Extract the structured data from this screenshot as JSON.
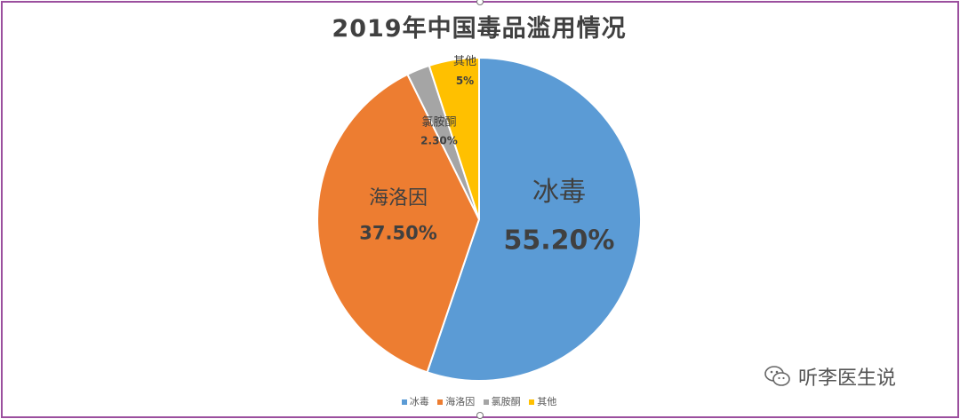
{
  "chart_data": {
    "type": "pie",
    "title": "2019年中国毒品滥用情况",
    "slices": [
      {
        "label": "冰毒",
        "value": 55.2,
        "display": "55.20%",
        "color": "#5b9bd5"
      },
      {
        "label": "海洛因",
        "value": 37.5,
        "display": "37.50%",
        "color": "#ed7d31"
      },
      {
        "label": "氯胺酮",
        "value": 2.3,
        "display": "2.30%",
        "color": "#a5a5a5"
      },
      {
        "label": "其他",
        "value": 5,
        "display": "5%",
        "color": "#ffc000"
      }
    ],
    "legend": {
      "placement": "bottom",
      "items": [
        "冰毒",
        "海洛因",
        "氯胺酮",
        "其他"
      ]
    }
  },
  "watermark": {
    "icon": "wechat-icon",
    "text": "听李医生说"
  },
  "frame_color": "#9b4f9e"
}
